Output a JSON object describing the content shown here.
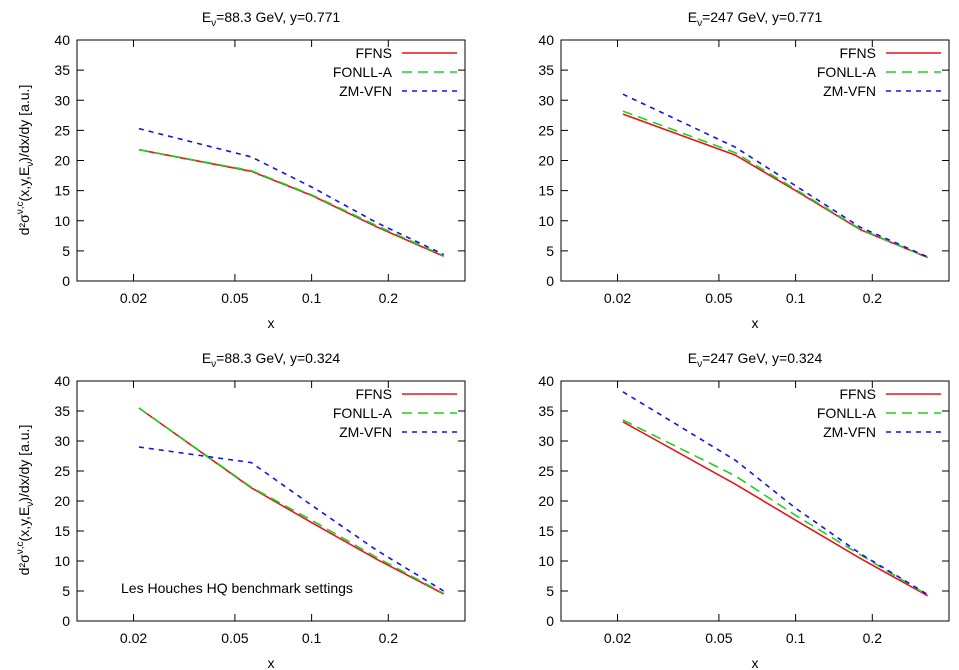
{
  "figure": {
    "ylabel_main": "d²σ",
    "ylabel_sup": "ν,c",
    "ylabel_rest": "(x,y,E",
    "ylabel_sub": "ν",
    "ylabel_end": ")/dx/dy [a.u.]",
    "xlabel": "x",
    "annotation": "Les Houches HQ benchmark settings"
  },
  "legend": {
    "items": [
      {
        "name": "FFNS",
        "color": "#e8141e",
        "dash": "solid"
      },
      {
        "name": "FONLL-A",
        "color": "#1ed21e",
        "dash": "long"
      },
      {
        "name": "ZM-VFN",
        "color": "#1414e6",
        "dash": "short"
      }
    ]
  },
  "chart_data": [
    {
      "type": "line",
      "title_prefix": "E",
      "title_sub": "ν",
      "title_rest": "=88.3 GeV, y=0.771",
      "xlabel": "x",
      "xscale": "log",
      "xlim": [
        0.012,
        0.4
      ],
      "ylim": [
        0,
        40
      ],
      "xticks": [
        "0.02",
        "0.05",
        "0.1",
        "0.2"
      ],
      "xtick_values": [
        0.02,
        0.05,
        0.1,
        0.2
      ],
      "yticks": [
        0,
        5,
        10,
        15,
        20,
        25,
        30,
        35,
        40
      ],
      "x": [
        0.021,
        0.058,
        0.1,
        0.18,
        0.33
      ],
      "series": [
        {
          "name": "FFNS",
          "values": [
            21.8,
            18.2,
            14.2,
            9.0,
            4.1
          ]
        },
        {
          "name": "FONLL-A",
          "values": [
            21.8,
            18.3,
            14.3,
            9.2,
            4.2
          ]
        },
        {
          "name": "ZM-VFN",
          "values": [
            25.3,
            20.6,
            15.6,
            9.7,
            4.4
          ]
        }
      ]
    },
    {
      "type": "line",
      "title_prefix": "E",
      "title_sub": "ν",
      "title_rest": "=247 GeV, y=0.771",
      "xlabel": "x",
      "xscale": "log",
      "xlim": [
        0.012,
        0.4
      ],
      "ylim": [
        0,
        40
      ],
      "xticks": [
        "0.02",
        "0.05",
        "0.1",
        "0.2"
      ],
      "xtick_values": [
        0.02,
        0.05,
        0.1,
        0.2
      ],
      "yticks": [
        0,
        5,
        10,
        15,
        20,
        25,
        30,
        35,
        40
      ],
      "x": [
        0.021,
        0.058,
        0.1,
        0.18,
        0.33
      ],
      "series": [
        {
          "name": "FFNS",
          "values": [
            27.7,
            20.9,
            15.0,
            8.5,
            3.9
          ]
        },
        {
          "name": "FONLL-A",
          "values": [
            28.2,
            21.3,
            15.2,
            8.6,
            3.9
          ]
        },
        {
          "name": "ZM-VFN",
          "values": [
            31.0,
            22.2,
            15.8,
            8.9,
            4.0
          ]
        }
      ]
    },
    {
      "type": "line",
      "title_prefix": "E",
      "title_sub": "ν",
      "title_rest": "=88.3 GeV, y=0.324",
      "xlabel": "x",
      "xscale": "log",
      "xlim": [
        0.012,
        0.4
      ],
      "ylim": [
        0,
        40
      ],
      "xticks": [
        "0.02",
        "0.05",
        "0.1",
        "0.2"
      ],
      "xtick_values": [
        0.02,
        0.05,
        0.1,
        0.2
      ],
      "yticks": [
        0,
        5,
        10,
        15,
        20,
        25,
        30,
        35,
        40
      ],
      "x": [
        0.021,
        0.058,
        0.1,
        0.18,
        0.33
      ],
      "series": [
        {
          "name": "FFNS",
          "values": [
            35.5,
            22.2,
            16.4,
            10.3,
            4.5
          ]
        },
        {
          "name": "FONLL-A",
          "values": [
            35.5,
            22.3,
            16.8,
            10.6,
            4.6
          ]
        },
        {
          "name": "ZM-VFN",
          "values": [
            29.0,
            26.4,
            19.3,
            11.8,
            5.0
          ]
        }
      ]
    },
    {
      "type": "line",
      "title_prefix": "E",
      "title_sub": "ν",
      "title_rest": "=247 GeV, y=0.324",
      "xlabel": "x",
      "xscale": "log",
      "xlim": [
        0.012,
        0.4
      ],
      "ylim": [
        0,
        40
      ],
      "xticks": [
        "0.02",
        "0.05",
        "0.1",
        "0.2"
      ],
      "xtick_values": [
        0.02,
        0.05,
        0.1,
        0.2
      ],
      "yticks": [
        0,
        5,
        10,
        15,
        20,
        25,
        30,
        35,
        40
      ],
      "x": [
        0.021,
        0.058,
        0.1,
        0.18,
        0.33
      ],
      "series": [
        {
          "name": "FFNS",
          "values": [
            33.2,
            22.8,
            16.8,
            10.4,
            4.2
          ]
        },
        {
          "name": "FONLL-A",
          "values": [
            33.5,
            24.2,
            17.6,
            11.0,
            4.3
          ]
        },
        {
          "name": "ZM-VFN",
          "values": [
            38.2,
            26.8,
            18.8,
            11.2,
            4.4
          ]
        }
      ]
    }
  ]
}
